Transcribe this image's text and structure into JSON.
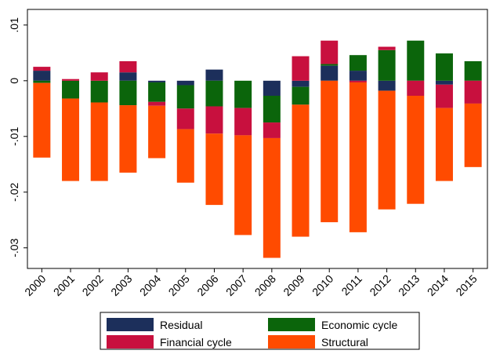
{
  "chart_data": {
    "type": "stacked_bar",
    "categories": [
      "2000",
      "2001",
      "2002",
      "2003",
      "2004",
      "2005",
      "2006",
      "2007",
      "2008",
      "2009",
      "2010",
      "2011",
      "2012",
      "2013",
      "2014",
      "2015"
    ],
    "series": [
      {
        "name": "Residual",
        "color": "#1c2f5b",
        "values": [
          0.0018,
          0,
          0,
          0.0015,
          -0.0003,
          -0.0008,
          0.002,
          0,
          -0.0027,
          -0.0011,
          0.0027,
          0.0018,
          -0.0018,
          0,
          -0.0007,
          0
        ]
      },
      {
        "name": "Economic cycle",
        "color": "#0b650b",
        "values": [
          -0.0004,
          -0.0032,
          -0.0039,
          -0.0044,
          -0.0035,
          -0.0042,
          -0.0046,
          -0.0049,
          -0.0048,
          -0.0032,
          0.0003,
          0.0028,
          0.0055,
          0.0072,
          0.0049,
          0.0035
        ]
      },
      {
        "name": "Financial cycle",
        "color": "#c8103e",
        "values": [
          0.0007,
          0.0003,
          0.0015,
          0.002,
          -0.0007,
          -0.0037,
          -0.0049,
          -0.0049,
          -0.0028,
          0.0044,
          0.0042,
          -0.0003,
          0.0006,
          -0.0027,
          -0.0042,
          -0.0041
        ]
      },
      {
        "name": "Structural",
        "color": "#ff4b00",
        "values": [
          -0.0134,
          -0.0148,
          -0.0141,
          -0.0121,
          -0.0094,
          -0.0096,
          -0.0128,
          -0.0179,
          -0.0215,
          -0.0237,
          -0.0254,
          -0.0269,
          -0.0213,
          -0.0194,
          -0.0131,
          -0.0114
        ]
      }
    ],
    "ylim": [
      -0.0337,
      0.0128
    ],
    "yticks": [
      {
        "value": 0.01,
        "label": ".01"
      },
      0,
      {
        "value": -0.01,
        "label": "-.01"
      },
      {
        "value": -0.02,
        "label": "-.02"
      },
      {
        "value": -0.03,
        "label": "-.03"
      }
    ]
  }
}
